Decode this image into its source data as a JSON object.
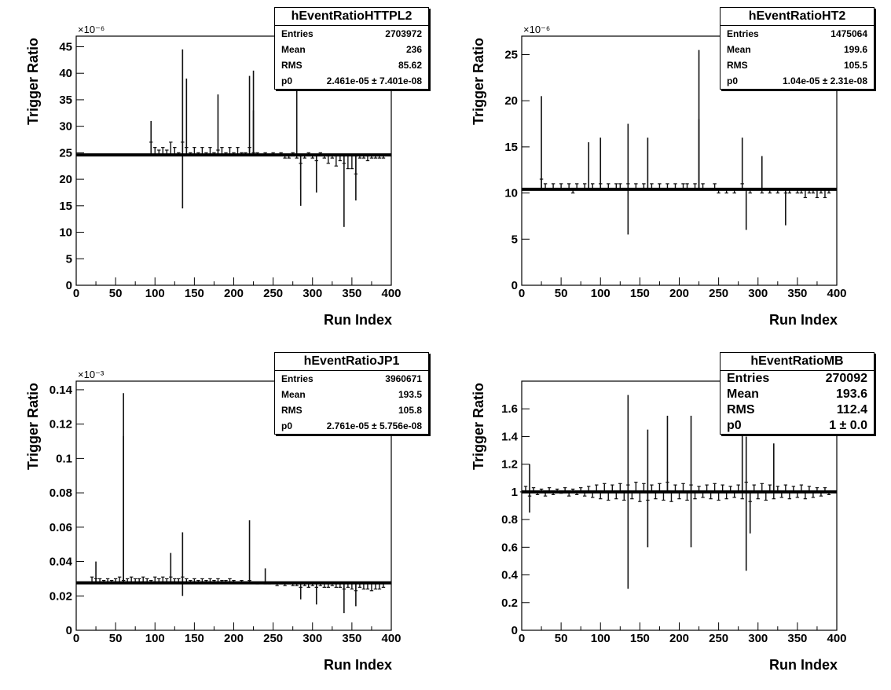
{
  "chart_data": [
    {
      "type": "line",
      "stats": {
        "title": "hEventRatioHTTPL2",
        "rows": [
          {
            "label": "Entries",
            "value": "2703972"
          },
          {
            "label": "Mean",
            "value": "236"
          },
          {
            "label": "RMS",
            "value": "85.62"
          },
          {
            "label": "p0",
            "value": "2.461e-05 ± 7.401e-08"
          }
        ]
      },
      "xlabel": "Run Index",
      "ylabel": "Trigger Ratio",
      "exponent": "×10⁻⁶",
      "xlim": [
        0,
        400
      ],
      "ylim": [
        0,
        47
      ],
      "xticks": [
        0,
        50,
        100,
        150,
        200,
        250,
        300,
        350,
        400
      ],
      "yticks": [
        0,
        5,
        10,
        15,
        20,
        25,
        30,
        35,
        40,
        45
      ],
      "fit": 24.6,
      "x": [
        95,
        100,
        105,
        110,
        115,
        120,
        125,
        130,
        135,
        140,
        145,
        150,
        155,
        160,
        165,
        170,
        175,
        180,
        185,
        190,
        195,
        200,
        205,
        210,
        215,
        220,
        225,
        230,
        235,
        240,
        245,
        250,
        255,
        260,
        265,
        270,
        275,
        280,
        285,
        290,
        295,
        300,
        305,
        310,
        315,
        320,
        325,
        330,
        335,
        340,
        345,
        350,
        355,
        360,
        365,
        370,
        375,
        380,
        385,
        390,
        395
      ],
      "y": [
        27,
        26,
        25.5,
        26,
        25.5,
        27,
        26,
        25,
        27,
        26,
        25,
        26,
        25,
        26,
        25,
        26,
        25,
        25.5,
        26,
        25,
        26,
        25,
        26,
        25,
        25,
        26,
        25,
        25,
        24.5,
        25,
        24.5,
        25,
        24.5,
        25,
        24,
        24,
        25,
        24,
        23,
        24,
        25,
        24,
        23.5,
        25,
        24,
        23,
        24,
        22.5,
        23.5,
        23,
        22,
        22,
        21,
        24,
        24,
        23.5,
        24,
        24,
        24,
        24,
        24.5
      ],
      "spikes": [
        [
          95,
          31
        ],
        [
          135,
          44.5
        ],
        [
          135,
          14.5
        ],
        [
          140,
          39
        ],
        [
          180,
          36
        ],
        [
          220,
          39.5
        ],
        [
          225,
          40.5
        ],
        [
          225,
          33
        ],
        [
          280,
          37
        ],
        [
          285,
          18
        ],
        [
          285,
          15
        ],
        [
          305,
          17.5
        ],
        [
          340,
          11
        ],
        [
          355,
          16
        ]
      ]
    },
    {
      "type": "line",
      "stats": {
        "title": "hEventRatioHT2",
        "rows": [
          {
            "label": "Entries",
            "value": "1475064"
          },
          {
            "label": "Mean",
            "value": "199.6"
          },
          {
            "label": "RMS",
            "value": "105.5"
          },
          {
            "label": "p0",
            "value": "1.04e-05 ± 2.31e-08"
          }
        ]
      },
      "xlabel": "Run Index",
      "ylabel": "Trigger Ratio",
      "exponent": "×10⁻⁶",
      "xlim": [
        0,
        400
      ],
      "ylim": [
        0,
        27
      ],
      "xticks": [
        0,
        50,
        100,
        150,
        200,
        250,
        300,
        350,
        400
      ],
      "yticks": [
        0,
        5,
        10,
        15,
        20,
        25
      ],
      "fit": 10.4,
      "x": [
        20,
        25,
        30,
        35,
        40,
        45,
        50,
        55,
        60,
        65,
        70,
        75,
        80,
        85,
        90,
        95,
        100,
        105,
        110,
        115,
        120,
        125,
        130,
        135,
        140,
        145,
        150,
        155,
        160,
        165,
        170,
        175,
        180,
        185,
        190,
        195,
        200,
        205,
        210,
        215,
        220,
        225,
        230,
        235,
        240,
        245,
        250,
        255,
        260,
        265,
        270,
        275,
        280,
        285,
        290,
        295,
        300,
        305,
        310,
        315,
        320,
        325,
        330,
        335,
        340,
        345,
        350,
        355,
        360,
        365,
        370,
        375,
        380,
        385,
        390
      ],
      "y": [
        10.5,
        11.5,
        11,
        10.5,
        11,
        10.5,
        11,
        10.5,
        11,
        10,
        11,
        10.5,
        11,
        10.5,
        11,
        10.5,
        11,
        10.5,
        11,
        10.5,
        11,
        11,
        10.5,
        11,
        10.5,
        11,
        10.5,
        11,
        10.5,
        11,
        10.5,
        11,
        10.5,
        11,
        10.5,
        11,
        10.5,
        11,
        11,
        10.5,
        11,
        10.5,
        11,
        10.5,
        10.5,
        11,
        10,
        10.5,
        10,
        10.5,
        10,
        10.5,
        11,
        10.5,
        10,
        10.5,
        10.5,
        10,
        10.5,
        10,
        10.5,
        10,
        10.5,
        10,
        10,
        10.5,
        10,
        10,
        9.5,
        10,
        10,
        9.5,
        10,
        9.5,
        10
      ],
      "spikes": [
        [
          25,
          20.5
        ],
        [
          85,
          15.5
        ],
        [
          100,
          16
        ],
        [
          135,
          17.5
        ],
        [
          135,
          5.5
        ],
        [
          160,
          16
        ],
        [
          225,
          25.5
        ],
        [
          225,
          18
        ],
        [
          280,
          16
        ],
        [
          285,
          6
        ],
        [
          305,
          14
        ],
        [
          335,
          6.5
        ]
      ]
    },
    {
      "type": "line",
      "stats": {
        "title": "hEventRatioJP1",
        "rows": [
          {
            "label": "Entries",
            "value": "3960671"
          },
          {
            "label": "Mean",
            "value": "193.5"
          },
          {
            "label": "RMS",
            "value": "105.8"
          },
          {
            "label": "p0",
            "value": "2.761e-05 ± 5.756e-08"
          }
        ]
      },
      "xlabel": "Run Index",
      "ylabel": "Trigger Ratio",
      "exponent": "×10⁻³",
      "xlim": [
        0,
        400
      ],
      "ylim": [
        0,
        0.145
      ],
      "xticks": [
        0,
        50,
        100,
        150,
        200,
        250,
        300,
        350,
        400
      ],
      "yticks": [
        0,
        0.02,
        0.04,
        0.06,
        0.08,
        0.1,
        0.12,
        0.14
      ],
      "ytick_labels": [
        "0",
        "0.02",
        "0.04",
        "0.06",
        "0.08",
        "0.1",
        "0.12",
        "0.14"
      ],
      "fit": 0.0276,
      "x": [
        20,
        25,
        30,
        35,
        40,
        45,
        50,
        55,
        60,
        65,
        70,
        75,
        80,
        85,
        90,
        95,
        100,
        105,
        110,
        115,
        120,
        125,
        130,
        135,
        140,
        145,
        150,
        155,
        160,
        165,
        170,
        175,
        180,
        185,
        190,
        195,
        200,
        205,
        210,
        215,
        220,
        225,
        230,
        235,
        240,
        245,
        250,
        255,
        260,
        265,
        270,
        275,
        280,
        285,
        290,
        295,
        300,
        305,
        310,
        315,
        320,
        325,
        330,
        335,
        340,
        345,
        350,
        355,
        360,
        365,
        370,
        375,
        380,
        385,
        390
      ],
      "y": [
        0.031,
        0.03,
        0.03,
        0.029,
        0.03,
        0.029,
        0.03,
        0.031,
        0.029,
        0.03,
        0.031,
        0.03,
        0.03,
        0.031,
        0.03,
        0.029,
        0.031,
        0.03,
        0.031,
        0.03,
        0.031,
        0.03,
        0.03,
        0.031,
        0.03,
        0.029,
        0.03,
        0.029,
        0.03,
        0.029,
        0.03,
        0.029,
        0.03,
        0.029,
        0.029,
        0.03,
        0.029,
        0.028,
        0.029,
        0.028,
        0.029,
        0.028,
        0.027,
        0.028,
        0.027,
        0.027,
        0.028,
        0.026,
        0.027,
        0.026,
        0.027,
        0.026,
        0.026,
        0.025,
        0.026,
        0.025,
        0.026,
        0.025,
        0.026,
        0.025,
        0.025,
        0.026,
        0.025,
        0.025,
        0.024,
        0.025,
        0.024,
        0.023,
        0.025,
        0.024,
        0.024,
        0.023,
        0.024,
        0.024,
        0.025
      ],
      "spikes": [
        [
          60,
          0.138
        ],
        [
          60,
          0.113
        ],
        [
          25,
          0.04
        ],
        [
          120,
          0.045
        ],
        [
          135,
          0.057
        ],
        [
          135,
          0.02
        ],
        [
          220,
          0.064
        ],
        [
          240,
          0.036
        ],
        [
          285,
          0.018
        ],
        [
          305,
          0.015
        ],
        [
          340,
          0.01
        ],
        [
          355,
          0.014
        ]
      ]
    },
    {
      "type": "line",
      "stats": {
        "title": "hEventRatioMB",
        "rows": [
          {
            "label": "Entries",
            "value": "270092"
          },
          {
            "label": "Mean",
            "value": "193.6"
          },
          {
            "label": "RMS",
            "value": "112.4"
          },
          {
            "label": "p0",
            "value": "1 ± 0.0"
          }
        ]
      },
      "xlabel": "Run Index",
      "ylabel": "Trigger Ratio",
      "exponent": "",
      "xlim": [
        0,
        400
      ],
      "ylim": [
        0,
        1.8
      ],
      "xticks": [
        0,
        50,
        100,
        150,
        200,
        250,
        300,
        350,
        400
      ],
      "yticks": [
        0,
        0.2,
        0.4,
        0.6,
        0.8,
        1,
        1.2,
        1.4,
        1.6
      ],
      "ytick_labels": [
        "0",
        "0.2",
        "0.4",
        "0.6",
        "0.8",
        "1",
        "1.2",
        "1.4",
        "1.6"
      ],
      "fit": 1.0,
      "x": [
        0,
        5,
        10,
        15,
        20,
        25,
        30,
        35,
        40,
        45,
        50,
        55,
        60,
        65,
        70,
        75,
        80,
        85,
        90,
        95,
        100,
        105,
        110,
        115,
        120,
        125,
        130,
        135,
        140,
        145,
        150,
        155,
        160,
        165,
        170,
        175,
        180,
        185,
        190,
        195,
        200,
        205,
        210,
        215,
        220,
        225,
        230,
        235,
        240,
        245,
        250,
        255,
        260,
        265,
        270,
        275,
        280,
        285,
        290,
        295,
        300,
        305,
        310,
        315,
        320,
        325,
        330,
        335,
        340,
        345,
        350,
        355,
        360,
        365,
        370,
        375,
        380,
        385,
        390
      ],
      "y": [
        1.0,
        1.04,
        0.97,
        1.03,
        0.98,
        1.02,
        0.97,
        1.03,
        0.98,
        1.02,
        0.99,
        1.03,
        0.97,
        1.02,
        0.98,
        1.03,
        0.97,
        1.04,
        0.96,
        1.05,
        0.95,
        1.06,
        0.94,
        1.05,
        0.95,
        1.06,
        0.94,
        1.05,
        0.95,
        1.07,
        0.93,
        1.06,
        0.94,
        1.05,
        0.95,
        1.06,
        0.94,
        1.07,
        0.93,
        1.05,
        0.95,
        1.06,
        0.94,
        1.05,
        0.95,
        1.04,
        0.96,
        1.05,
        0.95,
        1.06,
        0.94,
        1.05,
        0.95,
        1.04,
        0.96,
        1.05,
        0.95,
        1.07,
        0.93,
        1.05,
        0.95,
        1.06,
        0.94,
        1.05,
        0.95,
        1.04,
        0.96,
        1.05,
        0.95,
        1.04,
        0.96,
        1.05,
        0.95,
        1.04,
        0.96,
        1.03,
        0.97,
        1.03,
        0.98
      ],
      "spikes": [
        [
          10,
          1.2
        ],
        [
          10,
          0.85
        ],
        [
          135,
          1.7
        ],
        [
          135,
          0.3
        ],
        [
          160,
          1.45
        ],
        [
          160,
          0.6
        ],
        [
          185,
          1.55
        ],
        [
          215,
          1.55
        ],
        [
          215,
          0.6
        ],
        [
          280,
          1.5
        ],
        [
          285,
          1.4
        ],
        [
          285,
          0.43
        ],
        [
          290,
          0.7
        ],
        [
          320,
          1.35
        ]
      ]
    }
  ]
}
